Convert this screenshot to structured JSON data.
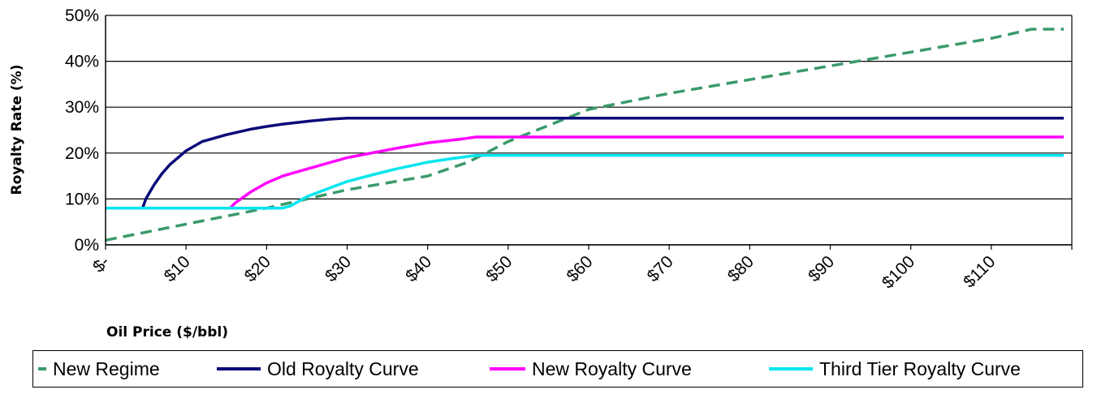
{
  "chart_data": {
    "type": "line",
    "title": "",
    "xlabel": "Oil Price ($/bbl)",
    "ylabel": "Royalty Rate (%)",
    "xlim": [
      0,
      120
    ],
    "ylim": [
      0,
      50
    ],
    "x_tick_labels": [
      "$-",
      "$10",
      "$20",
      "$30",
      "$40",
      "$50",
      "$60",
      "$70",
      "$80",
      "$90",
      "$100",
      "$110"
    ],
    "y_tick_labels": [
      "0%",
      "10%",
      "20%",
      "30%",
      "40%",
      "50%"
    ],
    "grid": "horizontal",
    "legend_position": "bottom",
    "series": [
      {
        "name": "New Regime",
        "color": "#3a9a6a",
        "style": "dashed",
        "x": [
          0,
          10,
          20,
          25,
          30,
          40,
          45,
          50,
          55,
          60,
          70,
          80,
          90,
          100,
          110,
          115,
          119
        ],
        "y": [
          1,
          4.5,
          8,
          10,
          12,
          15,
          18,
          22.5,
          26,
          29.5,
          33,
          36,
          39,
          42,
          45,
          47,
          47
        ]
      },
      {
        "name": "Old Royalty Curve",
        "color": "#0a0a78",
        "style": "solid",
        "x": [
          0,
          4.6,
          5,
          6,
          7,
          8,
          10,
          12,
          15,
          18,
          20,
          22,
          25,
          28,
          30,
          40,
          50,
          60,
          70,
          80,
          90,
          100,
          110,
          119
        ],
        "y": [
          8,
          8,
          10,
          13,
          15.5,
          17.5,
          20.5,
          22.5,
          24,
          25.2,
          25.8,
          26.3,
          26.9,
          27.4,
          27.6,
          27.6,
          27.6,
          27.6,
          27.6,
          27.6,
          27.6,
          27.6,
          27.6,
          27.6
        ]
      },
      {
        "name": "New Royalty Curve",
        "color": "#ff00ff",
        "style": "solid",
        "x": [
          0,
          15.5,
          16,
          18,
          20,
          22,
          25,
          28,
          30,
          33,
          36,
          40,
          44,
          46,
          50,
          60,
          70,
          80,
          90,
          100,
          110,
          119
        ],
        "y": [
          8,
          8,
          9,
          11.5,
          13.5,
          15,
          16.5,
          18,
          19,
          20,
          21,
          22.2,
          23,
          23.5,
          23.5,
          23.5,
          23.5,
          23.5,
          23.5,
          23.5,
          23.5,
          23.5
        ]
      },
      {
        "name": "Third Tier Royalty Curve",
        "color": "#00e5ee",
        "style": "solid",
        "x": [
          0,
          22,
          23,
          25,
          28,
          30,
          33,
          36,
          40,
          43,
          46,
          50,
          60,
          70,
          80,
          90,
          100,
          110,
          119
        ],
        "y": [
          8,
          8,
          8.5,
          10.5,
          12.5,
          13.8,
          15.2,
          16.5,
          18,
          18.8,
          19.5,
          19.5,
          19.5,
          19.5,
          19.5,
          19.5,
          19.5,
          19.5,
          19.5
        ]
      }
    ]
  }
}
